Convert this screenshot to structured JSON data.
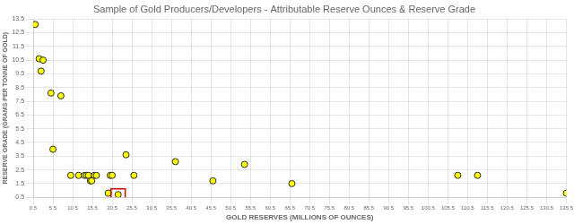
{
  "chart_data": {
    "type": "scatter",
    "title": "Sample of Gold Producers/Developers - Attributable Reserve Ounces & Reserve Grade",
    "x_label": "GOLD RESERVES (MILLIONS OF OUNCES)",
    "y_label": "RESERVE GRADE (GRAMS PER TONNE OF GOLD)",
    "x": [
      1.0,
      2.0,
      2.5,
      3.0,
      5.0,
      7.5,
      5.5,
      10.0,
      12.0,
      13.5,
      14.0,
      14.5,
      15.0,
      15.3,
      16.0,
      16.5,
      19.5,
      20.0,
      20.5,
      22.0,
      24.0,
      26.0,
      36.5,
      46.0,
      54.0,
      66.0,
      108.0,
      113.0,
      135.5
    ],
    "values": [
      13.1,
      10.6,
      9.7,
      10.5,
      8.1,
      7.9,
      4.0,
      2.1,
      2.1,
      2.1,
      2.1,
      2.1,
      1.7,
      1.7,
      2.1,
      2.1,
      0.8,
      2.1,
      2.1,
      0.7,
      3.6,
      2.1,
      3.1,
      1.7,
      2.9,
      1.5,
      2.1,
      2.1,
      0.8
    ],
    "color": "#ffff00",
    "highlight": {
      "x": 22.0,
      "y": 0.7,
      "color": "#cc0000"
    },
    "xlim": [
      0.5,
      135.5
    ],
    "ylim": [
      0.5,
      13.5
    ],
    "xticks": [
      0.5,
      5.5,
      10.5,
      15.5,
      20.5,
      25.5,
      30.5,
      35.5,
      40.5,
      45.5,
      50.5,
      55.5,
      60.5,
      65.5,
      70.5,
      75.5,
      80.5,
      85.5,
      90.5,
      95.5,
      100.5,
      105.5,
      110.5,
      115.5,
      120.5,
      125.5,
      130.5,
      135.5
    ],
    "yticks": [
      0.5,
      1.5,
      2.5,
      3.5,
      4.5,
      5.5,
      6.5,
      7.5,
      8.5,
      9.5,
      10.5,
      11.5,
      12.5,
      13.5
    ],
    "grid": true
  }
}
